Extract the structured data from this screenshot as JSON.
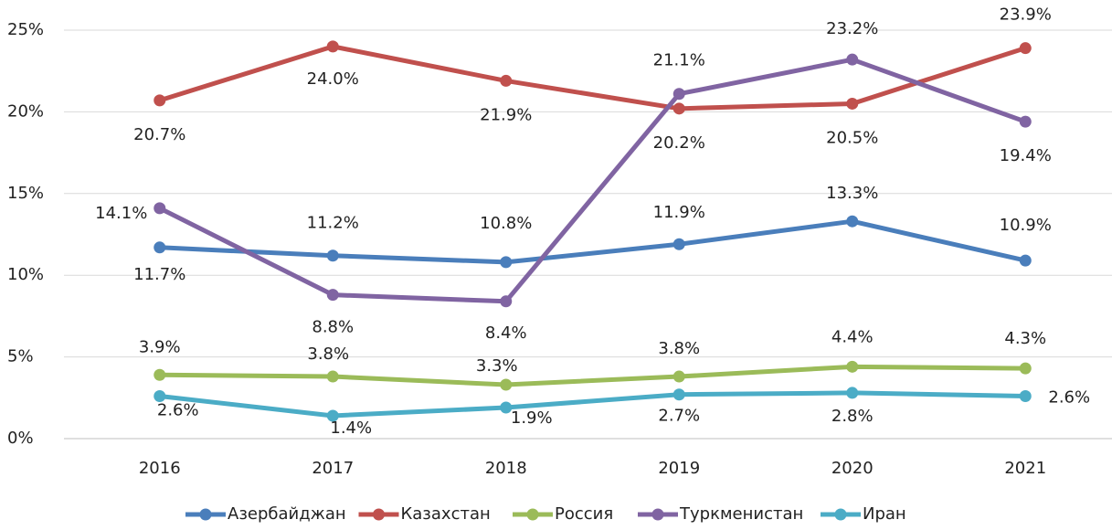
{
  "chart_data": {
    "type": "line",
    "categories": [
      "2016",
      "2017",
      "2018",
      "2019",
      "2020",
      "2021"
    ],
    "series": [
      {
        "name": "Азербайджан",
        "color": "#4a7ebb",
        "values": [
          11.7,
          11.2,
          10.8,
          11.9,
          13.3,
          10.9
        ],
        "value_labels": [
          "11.7%",
          "11.2%",
          "10.8%",
          "11.9%",
          "13.3%",
          "10.9%"
        ]
      },
      {
        "name": "Казахстан",
        "color": "#c0504d",
        "values": [
          20.7,
          24.0,
          21.9,
          20.2,
          20.5,
          23.9
        ],
        "value_labels": [
          "20.7%",
          "24.0%",
          "21.9%",
          "20.2%",
          "20.5%",
          "23.9%"
        ]
      },
      {
        "name": "Россия",
        "color": "#9bbb59",
        "values": [
          3.9,
          3.8,
          3.3,
          3.8,
          4.4,
          4.3
        ],
        "value_labels": [
          "3.9%",
          "3.8%",
          "3.3%",
          "3.8%",
          "4.4%",
          "4.3%"
        ]
      },
      {
        "name": "Туркменистан",
        "color": "#8064a2",
        "values": [
          14.1,
          8.8,
          8.4,
          21.1,
          23.2,
          19.4
        ],
        "value_labels": [
          "14.1%",
          "8.8%",
          "8.4%",
          "21.1%",
          "23.2%",
          "19.4%"
        ]
      },
      {
        "name": "Иран",
        "color": "#4bacc6",
        "values": [
          2.6,
          1.4,
          1.9,
          2.7,
          2.8,
          2.6
        ],
        "value_labels": [
          "2.6%",
          "1.4%",
          "1.9%",
          "2.7%",
          "2.8%",
          "2.6%"
        ]
      }
    ],
    "ylim": [
      0,
      25
    ],
    "yticks": [
      {
        "value": 0,
        "label": "0%"
      },
      {
        "value": 5,
        "label": "5%"
      },
      {
        "value": 10,
        "label": "10%"
      },
      {
        "value": 15,
        "label": "15%"
      },
      {
        "value": 20,
        "label": "20%"
      },
      {
        "value": 25,
        "label": "25%"
      }
    ],
    "grid": true,
    "legend": "bottom"
  }
}
